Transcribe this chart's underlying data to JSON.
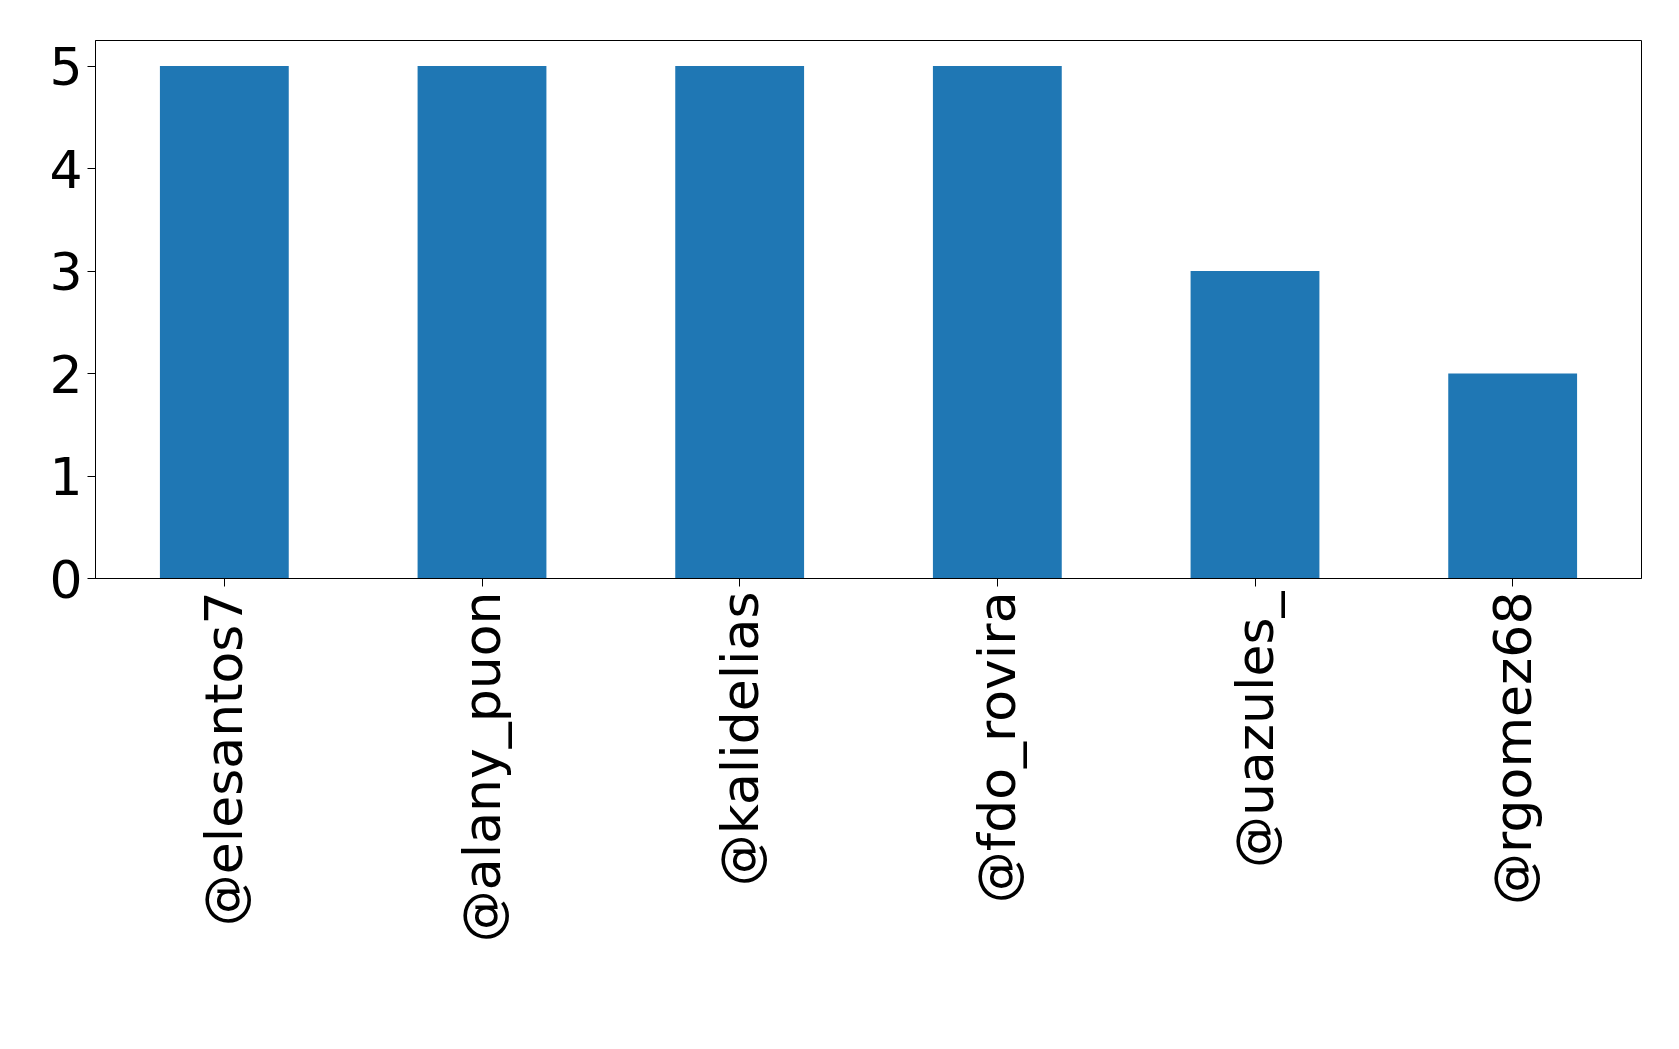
{
  "chart_data": {
    "type": "bar",
    "categories": [
      "@elesantos7",
      "@alany_puon",
      "@kalidelias",
      "@fdo_rovira",
      "@uazules_",
      "@rgomez68"
    ],
    "values": [
      5,
      5,
      5,
      5,
      3,
      2
    ],
    "color": "#1f77b4",
    "ylim": [
      0,
      5.25
    ],
    "yticks": [
      0,
      1,
      2,
      3,
      4,
      5
    ]
  }
}
